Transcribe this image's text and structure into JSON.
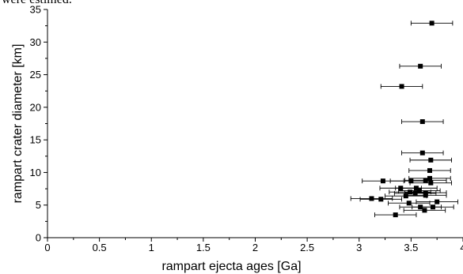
{
  "page": {
    "caption_fragment": "were estimed."
  },
  "chart_data": {
    "type": "scatter",
    "title": "",
    "xlabel": "rampart ejecta ages [Ga]",
    "ylabel": "rampart crater diameter [km]",
    "xlim": [
      0,
      4
    ],
    "ylim": [
      0,
      35
    ],
    "x_ticks": [
      "0",
      "0.5",
      "1",
      "1.5",
      "2",
      "2.5",
      "3",
      "3.5",
      "4"
    ],
    "y_ticks": [
      "0",
      "5",
      "10",
      "15",
      "20",
      "25",
      "30",
      "35"
    ],
    "grid": false,
    "marker": "square",
    "marker_color": "#000000",
    "points": [
      {
        "x": 3.7,
        "y": 32.9,
        "xerr": 0.2
      },
      {
        "x": 3.59,
        "y": 26.3,
        "xerr": 0.2
      },
      {
        "x": 3.41,
        "y": 23.2,
        "xerr": 0.2
      },
      {
        "x": 3.61,
        "y": 17.8,
        "xerr": 0.2
      },
      {
        "x": 3.61,
        "y": 13.0,
        "xerr": 0.2
      },
      {
        "x": 3.69,
        "y": 11.9,
        "xerr": 0.2
      },
      {
        "x": 3.68,
        "y": 10.3,
        "xerr": 0.2
      },
      {
        "x": 3.68,
        "y": 9.1,
        "xerr": 0.2
      },
      {
        "x": 3.23,
        "y": 8.7,
        "xerr": 0.2
      },
      {
        "x": 3.5,
        "y": 8.7,
        "xerr": 0.2
      },
      {
        "x": 3.64,
        "y": 8.8,
        "xerr": 0.2
      },
      {
        "x": 3.69,
        "y": 8.4,
        "xerr": 0.2
      },
      {
        "x": 3.4,
        "y": 7.6,
        "xerr": 0.2
      },
      {
        "x": 3.55,
        "y": 7.6,
        "xerr": 0.2
      },
      {
        "x": 3.58,
        "y": 7.2,
        "xerr": 0.2
      },
      {
        "x": 3.49,
        "y": 7.0,
        "xerr": 0.2
      },
      {
        "x": 3.54,
        "y": 6.8,
        "xerr": 0.2
      },
      {
        "x": 3.64,
        "y": 6.9,
        "xerr": 0.2
      },
      {
        "x": 3.45,
        "y": 6.4,
        "xerr": 0.2
      },
      {
        "x": 3.64,
        "y": 6.5,
        "xerr": 0.2
      },
      {
        "x": 3.12,
        "y": 6.0,
        "xerr": 0.2
      },
      {
        "x": 3.21,
        "y": 5.9,
        "xerr": 0.2
      },
      {
        "x": 3.48,
        "y": 5.3,
        "xerr": 0.2
      },
      {
        "x": 3.75,
        "y": 5.5,
        "xerr": 0.2
      },
      {
        "x": 3.59,
        "y": 4.7,
        "xerr": 0.2
      },
      {
        "x": 3.71,
        "y": 4.7,
        "xerr": 0.2
      },
      {
        "x": 3.63,
        "y": 4.2,
        "xerr": 0.2
      },
      {
        "x": 3.35,
        "y": 3.5,
        "xerr": 0.2
      }
    ]
  }
}
